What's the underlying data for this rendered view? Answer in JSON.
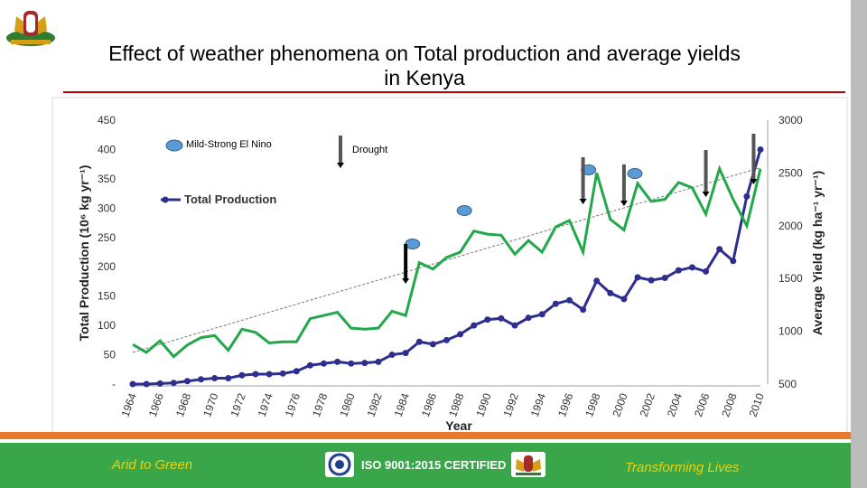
{
  "title_line1": "Effect of weather phenomena on Total production and average yields",
  "title_line2": "in Kenya",
  "footer": {
    "left": "Arid to Green",
    "center": "ISO 9001:2015 CERTIFIED",
    "right": "Transforming Lives"
  },
  "colors": {
    "production": "#2e2e8f",
    "yield": "#22a84a",
    "footer_bg": "#3aa64a",
    "accent_rule": "#c00000",
    "footer_text": "#f0d000"
  },
  "chart_data": {
    "type": "line",
    "xlabel": "Year",
    "ylabel_left": "Total Production (10⁶ kg yr⁻¹)",
    "ylabel_right": "Average Yield (kg ha⁻¹ yr⁻¹)",
    "x": [
      1964,
      1965,
      1966,
      1967,
      1968,
      1969,
      1970,
      1971,
      1972,
      1973,
      1974,
      1975,
      1976,
      1977,
      1978,
      1979,
      1980,
      1981,
      1982,
      1983,
      1984,
      1985,
      1986,
      1987,
      1988,
      1989,
      1990,
      1991,
      1992,
      1993,
      1994,
      1995,
      1996,
      1997,
      1998,
      1999,
      2000,
      2001,
      2002,
      2003,
      2004,
      2005,
      2006,
      2007,
      2008,
      2009,
      2010
    ],
    "x_ticks": [
      "1964",
      "1966",
      "1968",
      "1970",
      "1972",
      "1974",
      "1976",
      "1978",
      "1980",
      "1982",
      "1984",
      "1986",
      "1988",
      "1990",
      "1992",
      "1994",
      "1996",
      "1998",
      "2000",
      "2002",
      "2004",
      "2006",
      "2008",
      "2010"
    ],
    "ylim_left": [
      0,
      450
    ],
    "yticks_left": [
      "-",
      "50",
      "100",
      "150",
      "200",
      "250",
      "300",
      "350",
      "400",
      "450"
    ],
    "ylim_right": [
      500,
      3000
    ],
    "yticks_right": [
      "500",
      "1000",
      "1500",
      "2000",
      "2500",
      "3000"
    ],
    "series": [
      {
        "name": "Total Production",
        "axis": "left",
        "values": [
          0,
          0,
          1,
          2,
          5,
          8,
          10,
          10,
          15,
          17,
          17,
          18,
          22,
          32,
          35,
          38,
          35,
          36,
          38,
          50,
          53,
          72,
          68,
          75,
          85,
          100,
          110,
          112,
          100,
          113,
          119,
          137,
          143,
          127,
          176,
          155,
          145,
          182,
          177,
          181,
          194,
          199,
          192,
          230,
          210,
          320,
          400
        ]
      },
      {
        "name": "Average Yield",
        "axis": "right",
        "values": [
          875,
          800,
          910,
          760,
          870,
          940,
          960,
          820,
          1020,
          990,
          890,
          900,
          900,
          1120,
          1150,
          1180,
          1030,
          1020,
          1030,
          1190,
          1150,
          1650,
          1590,
          1700,
          1750,
          1950,
          1920,
          1910,
          1730,
          1860,
          1750,
          1990,
          2050,
          1750,
          2500,
          2060,
          1960,
          2400,
          2230,
          2250,
          2410,
          2360,
          2110,
          2540,
          2250,
          2000,
          2540
        ]
      }
    ],
    "annotations": [
      {
        "type": "legend",
        "text": "Mild-Strong El Nino",
        "symbol": "blue-ellipse"
      },
      {
        "type": "legend",
        "text": "Drought",
        "symbol": "down-arrow"
      },
      {
        "type": "legend",
        "text": "Total Production",
        "symbol": "line-marker"
      }
    ],
    "el_nino_years": [
      1984.5,
      1988.3,
      1997.4,
      2000.8
    ],
    "drought_years": [
      1984,
      1997,
      2000,
      2006,
      2009.5
    ],
    "trendline": {
      "axis": "right",
      "from": [
        1964,
        800
      ],
      "to": [
        2010,
        2550
      ]
    },
    "grid": false
  }
}
